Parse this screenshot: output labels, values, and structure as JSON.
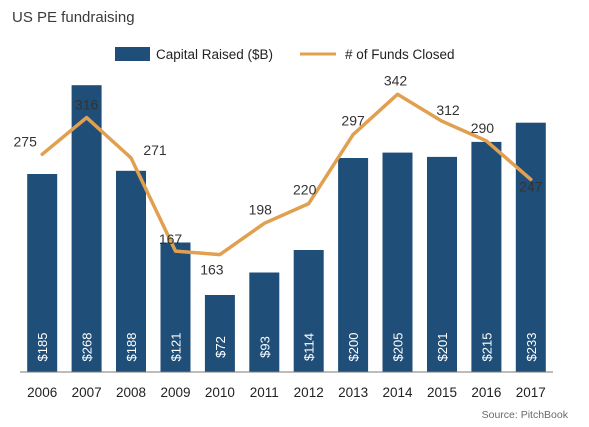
{
  "chart_data": {
    "type": "bar",
    "title": "US PE fundraising",
    "categories": [
      "2006",
      "2007",
      "2008",
      "2009",
      "2010",
      "2011",
      "2012",
      "2013",
      "2014",
      "2015",
      "2016",
      "2017"
    ],
    "series": [
      {
        "name": "Capital Raised ($B)",
        "type": "bar",
        "values": [
          185,
          268,
          188,
          121,
          72,
          93,
          114,
          200,
          205,
          201,
          215,
          233
        ],
        "labels": [
          "$185",
          "$268",
          "$188",
          "$121",
          "$72",
          "$93",
          "$114",
          "$200",
          "$205",
          "$201",
          "$215",
          "$233"
        ],
        "color": "#1f4e79"
      },
      {
        "name": "# of Funds Closed",
        "type": "line",
        "values": [
          275,
          316,
          271,
          167,
          163,
          198,
          220,
          297,
          342,
          312,
          290,
          247
        ],
        "color": "#e0a050"
      }
    ],
    "legend": "top-center",
    "grid": false
  },
  "source": "Source: PitchBook"
}
